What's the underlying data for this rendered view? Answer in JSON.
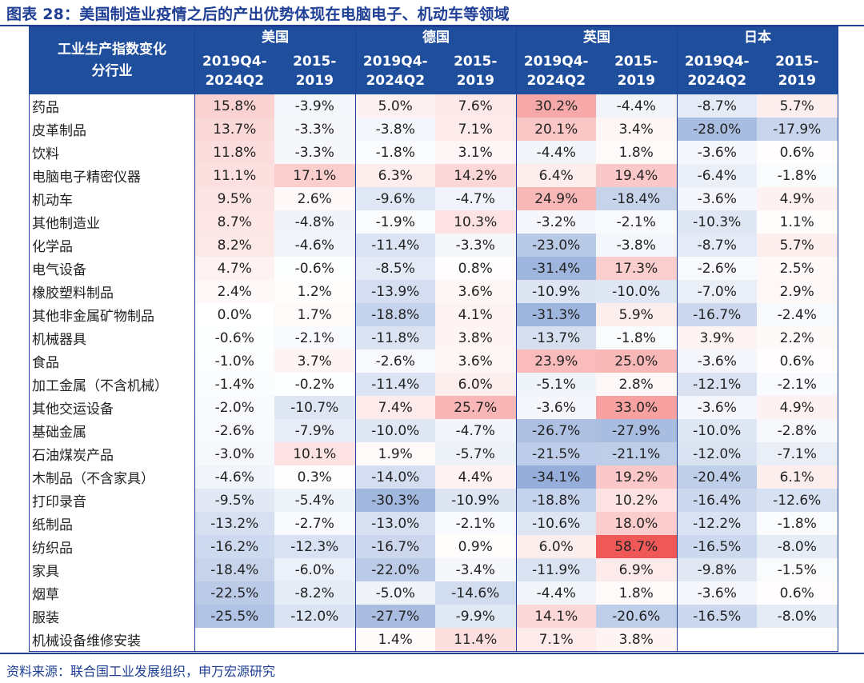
{
  "title": "图表 28：美国制造业疫情之后的产出优势体现在电脑电子、机动车等领域",
  "source": "资料来源：联合国工业发展组织，申万宏源研究",
  "header": {
    "corner": [
      "工业生产指数变化",
      "分行业"
    ],
    "countries": [
      "美国",
      "德国",
      "英国",
      "日本"
    ],
    "periods": [
      [
        "2019Q4-",
        "2024Q2"
      ],
      [
        "2015-",
        "2019"
      ]
    ]
  },
  "chart_data": {
    "type": "table",
    "columns": [
      {
        "country": "美国",
        "period": "2019Q4-2024Q2"
      },
      {
        "country": "美国",
        "period": "2015-2019"
      },
      {
        "country": "德国",
        "period": "2019Q4-2024Q2"
      },
      {
        "country": "德国",
        "period": "2015-2019"
      },
      {
        "country": "英国",
        "period": "2019Q4-2024Q2"
      },
      {
        "country": "英国",
        "period": "2015-2019"
      },
      {
        "country": "日本",
        "period": "2019Q4-2024Q2"
      },
      {
        "country": "日本",
        "period": "2015-2019"
      }
    ],
    "rows": [
      {
        "label": "药品",
        "values": [
          15.8,
          -3.9,
          5.0,
          7.6,
          30.2,
          -4.4,
          -8.7,
          5.7
        ]
      },
      {
        "label": "皮革制品",
        "values": [
          13.7,
          -3.3,
          -3.8,
          7.1,
          20.1,
          3.4,
          -28.0,
          -17.9
        ]
      },
      {
        "label": "饮料",
        "values": [
          11.8,
          -3.3,
          -1.8,
          3.1,
          -4.4,
          1.8,
          -3.6,
          0.6
        ]
      },
      {
        "label": "电脑电子精密仪器",
        "values": [
          11.1,
          17.1,
          6.3,
          14.2,
          6.4,
          19.4,
          -6.4,
          -1.8
        ]
      },
      {
        "label": "机动车",
        "values": [
          9.5,
          2.6,
          -9.6,
          -4.7,
          24.9,
          -18.4,
          -3.6,
          4.9
        ]
      },
      {
        "label": "其他制造业",
        "values": [
          8.7,
          -4.8,
          -1.9,
          10.3,
          -3.2,
          -2.1,
          -10.3,
          1.1
        ]
      },
      {
        "label": "化学品",
        "values": [
          8.2,
          -4.6,
          -11.4,
          -3.3,
          -23.0,
          -3.8,
          -8.7,
          5.7
        ]
      },
      {
        "label": "电气设备",
        "values": [
          4.7,
          -0.6,
          -8.5,
          0.8,
          -31.4,
          17.3,
          -2.6,
          2.5
        ]
      },
      {
        "label": "橡胶塑料制品",
        "values": [
          2.4,
          1.2,
          -13.9,
          3.6,
          -10.9,
          -10.0,
          -7.0,
          2.9
        ]
      },
      {
        "label": "其他非金属矿物制品",
        "values": [
          0.0,
          1.7,
          -18.8,
          4.1,
          -31.3,
          5.9,
          -16.7,
          -2.4
        ]
      },
      {
        "label": "机械器具",
        "values": [
          -0.6,
          -2.1,
          -11.8,
          3.8,
          -13.7,
          -1.8,
          3.9,
          2.2
        ]
      },
      {
        "label": "食品",
        "values": [
          -1.0,
          3.7,
          -2.6,
          3.6,
          23.9,
          25.0,
          -3.6,
          0.6
        ]
      },
      {
        "label": "加工金属（不含机械）",
        "values": [
          -1.4,
          -0.2,
          -11.4,
          6.0,
          -5.1,
          2.8,
          -12.1,
          -2.1
        ]
      },
      {
        "label": "其他交运设备",
        "values": [
          -2.0,
          -10.7,
          7.4,
          25.7,
          -3.6,
          33.0,
          -3.6,
          4.9
        ]
      },
      {
        "label": "基础金属",
        "values": [
          -2.6,
          -7.9,
          -10.0,
          -4.7,
          -26.7,
          -27.9,
          -10.0,
          -2.8
        ]
      },
      {
        "label": "石油煤炭产品",
        "values": [
          -3.0,
          10.1,
          1.9,
          -5.7,
          -21.5,
          -21.1,
          -12.0,
          -7.1
        ]
      },
      {
        "label": "木制品（不含家具）",
        "values": [
          -4.6,
          0.3,
          -14.0,
          4.4,
          -34.1,
          19.2,
          -20.4,
          6.1
        ]
      },
      {
        "label": "打印录音",
        "values": [
          -9.5,
          -5.4,
          -30.3,
          -10.9,
          -18.8,
          10.2,
          -16.4,
          -12.6
        ]
      },
      {
        "label": "纸制品",
        "values": [
          -13.2,
          -2.7,
          -13.0,
          -2.1,
          -10.6,
          18.0,
          -12.2,
          -1.8
        ]
      },
      {
        "label": "纺织品",
        "values": [
          -16.2,
          -12.3,
          -16.7,
          0.9,
          6.0,
          58.7,
          -16.5,
          -8.0
        ]
      },
      {
        "label": "家具",
        "values": [
          -18.4,
          -6.0,
          -22.0,
          -3.4,
          -11.9,
          6.9,
          -9.8,
          -1.5
        ]
      },
      {
        "label": "烟草",
        "values": [
          -22.5,
          -8.2,
          -5.0,
          -14.6,
          -4.4,
          1.8,
          -3.6,
          0.6
        ]
      },
      {
        "label": "服装",
        "values": [
          -25.5,
          -12.0,
          -27.7,
          -9.9,
          14.1,
          -20.6,
          -16.5,
          -8.0
        ]
      },
      {
        "label": "机械设备维修安装",
        "values": [
          null,
          null,
          1.4,
          11.4,
          7.1,
          3.8,
          null,
          null
        ]
      }
    ],
    "value_format": "percent, one decimal",
    "color_scale": {
      "negative": "#4a74c0",
      "zero": "#ffffff",
      "positive": "#f05858",
      "max_abs": 58.7
    }
  }
}
